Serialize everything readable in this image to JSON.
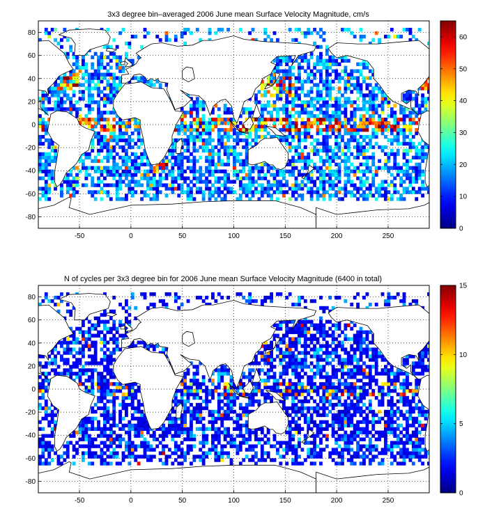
{
  "colors": {
    "land": "#ffffff",
    "frame": "#000000",
    "grid": "#000000"
  },
  "chart_data": [
    {
      "type": "heatmap",
      "title": "3x3 degree bin–averaged 2006 June mean Surface Velocity Magnitude, cm/s",
      "xlabel": "",
      "ylabel": "",
      "xlim": [
        -90,
        290
      ],
      "ylim": [
        -90,
        90
      ],
      "x_ticks": [
        "-50",
        "0",
        "50",
        "100",
        "150",
        "200",
        "250"
      ],
      "y_ticks": [
        "80",
        "60",
        "40",
        "20",
        "0",
        "-20",
        "-40",
        "-60",
        "-80"
      ],
      "grid": true,
      "colormap": "jet",
      "colorbar": {
        "min": 0,
        "max": 65,
        "ticks": [
          "0",
          "10",
          "20",
          "30",
          "40",
          "50",
          "60"
        ]
      },
      "bin_size_deg": 3,
      "approx_value_range": [
        2,
        66
      ],
      "dominant_values": "blue-cyan (5-25 cm/s) over most of the world ocean; orange-red (40-66 cm/s) along equatorial currents, Gulf Stream, Kuroshio, Agulhas and Somali currents"
    },
    {
      "type": "heatmap",
      "title": "N of cycles per 3x3 degree bin for 2006 June mean Surface Velocity Magnitude (6400 in total)",
      "xlabel": "",
      "ylabel": "",
      "xlim": [
        -90,
        290
      ],
      "ylim": [
        -90,
        90
      ],
      "x_ticks": [
        "-50",
        "0",
        "50",
        "100",
        "150",
        "200",
        "250"
      ],
      "y_ticks": [
        "80",
        "60",
        "40",
        "20",
        "0",
        "-20",
        "-40",
        "-60",
        "-80"
      ],
      "grid": true,
      "colormap": "jet",
      "colorbar": {
        "min": 0,
        "max": 15,
        "ticks": [
          "0",
          "5",
          "10",
          "15"
        ]
      },
      "bin_size_deg": 3,
      "approx_value_range": [
        1,
        15
      ],
      "dominant_values": "dark blue (1-3 cycles) over most bins; sparse higher counts near Europe, the Mediterranean and the Kuroshio region"
    }
  ]
}
